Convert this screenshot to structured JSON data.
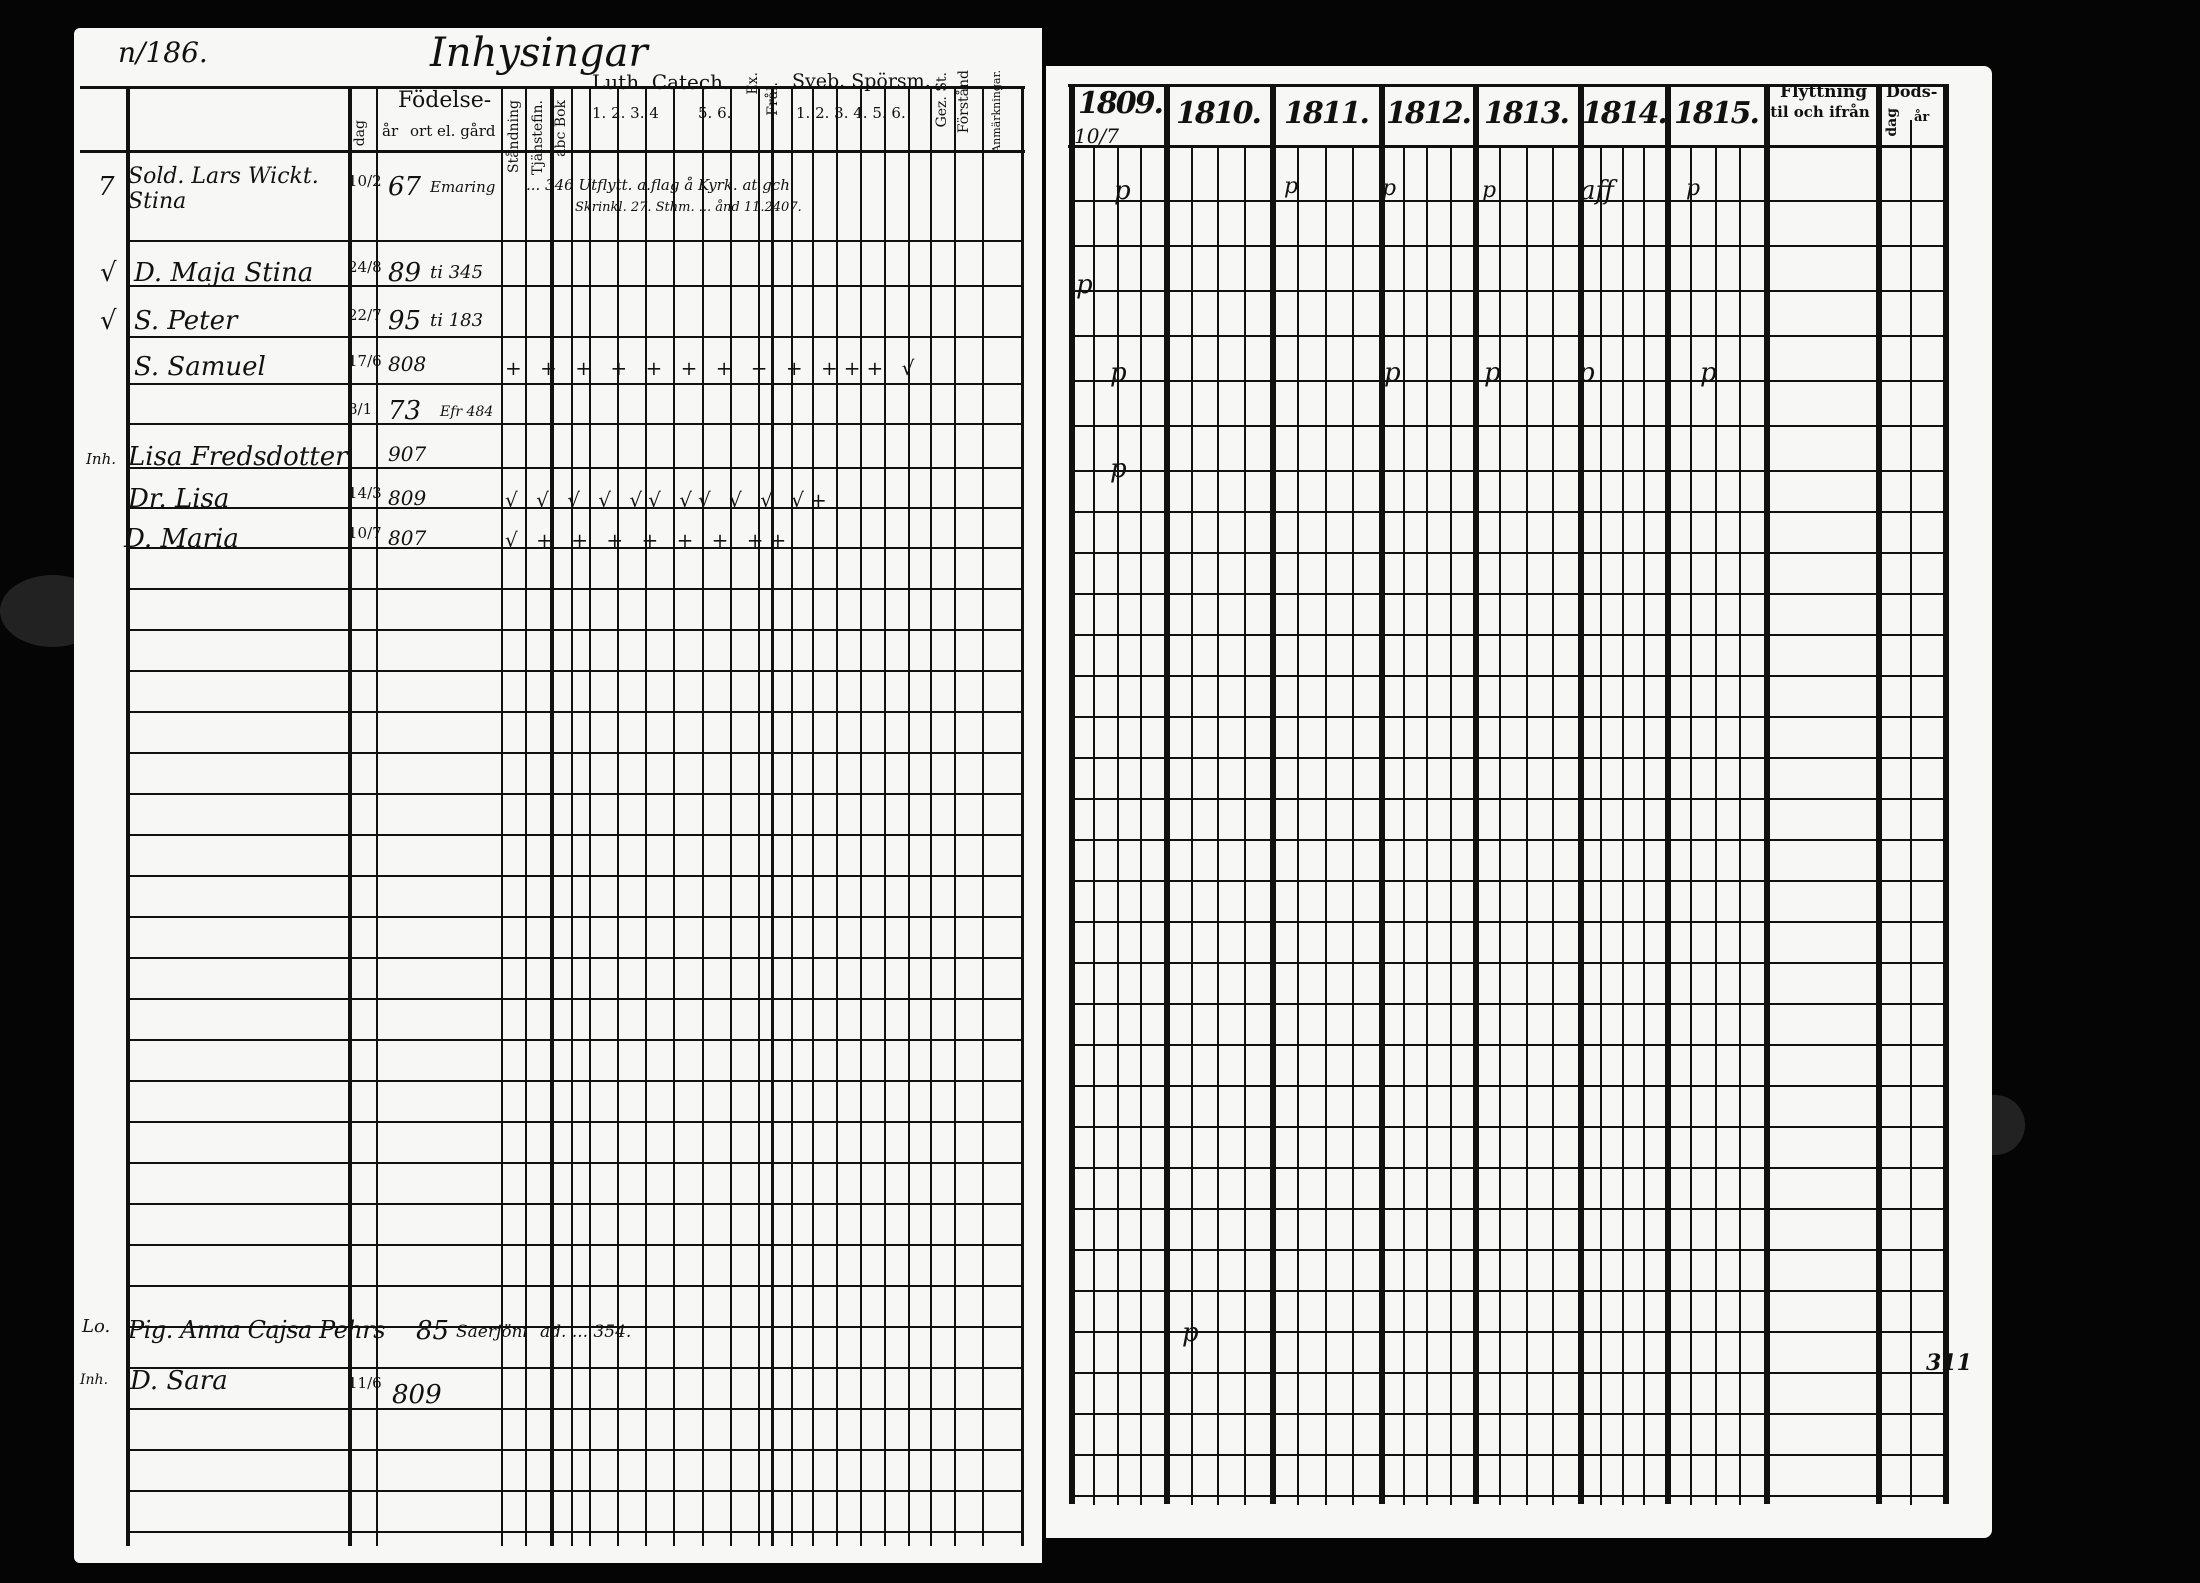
{
  "left_page": {
    "page_number": "n/186.",
    "title": "Inhysingar",
    "headers": {
      "fodelse": "Födelse-",
      "dag": "dag",
      "ar": "år",
      "ort": "ort el. gård",
      "stadning": "Ståndning",
      "tjanst": "Tjänstefin.",
      "abc": "abc Bok",
      "luth": "Luth. Catech.",
      "luth_cols": "1. 2. 3. 4",
      "luth_cols2": "5. 6.",
      "col_a": "Ex.",
      "col_b": "Frål.",
      "sveb": "Sveb. Spörsm.",
      "sveb_cols": "1. 2. 3. 4. 5. 6.",
      "gez": "Gez. St.",
      "forstand": "Förstånd",
      "anmarkningar": "Anmärkningar."
    },
    "rows": [
      {
        "margin": "7",
        "name": "Sold. Lars Wickt. Stina",
        "dag": "10/2",
        "ar": "67",
        "ort": "Emaring",
        "note1": "... 346 Utflytt. a.flag å Kyrk. at gch",
        "note2": "Skrinkl. 27. Sthm. ... ånd 11.2407."
      },
      {
        "margin": "√",
        "name": "D. Maja Stina",
        "dag": "24/8",
        "ar": "89",
        "ort": "ti 345"
      },
      {
        "margin": "√",
        "name": "S. Peter",
        "dag": "22/7",
        "ar": "95",
        "ort": "ti 183"
      },
      {
        "margin": "",
        "name": "S. Samuel",
        "dag": "17/6",
        "ar": "808",
        "marks": "+ + + + + + + + + +++ √"
      },
      {
        "margin": "",
        "name": "",
        "dag": "8/1",
        "ar": "73",
        "ort": "Efr 484"
      },
      {
        "margin": "Inh.",
        "name": "Lisa Fredsdotter",
        "dag": "",
        "ar": "907"
      },
      {
        "margin": "",
        "name": "Dr. Lisa",
        "dag": "14/3",
        "ar": "809",
        "marks": "√ √ √ √ √√ √√ √ √ √+"
      },
      {
        "margin": "",
        "name": "D. Maria",
        "dag": "10/7",
        "ar": "807",
        "marks": "√ + + + + + + ++"
      }
    ],
    "bottom_rows": [
      {
        "margin": "Lo.",
        "name": "Pig. Anna Cajsa Pehrs",
        "ar": "85",
        "ort": "Saerjöni",
        "note": "ad. ... 354."
      },
      {
        "margin": "Inh.",
        "name": "D. Sara",
        "dag": "11/6",
        "ar": "809"
      }
    ]
  },
  "right_page": {
    "years": [
      "1809.",
      "1810.",
      "1811.",
      "1812.",
      "1813.",
      "1814.",
      "1815."
    ],
    "year_sub": "10/7",
    "flyttning": "Flyttning",
    "flyttning_sub": "til och ifrån",
    "dods": "Döds-",
    "dods_sub1": "dag",
    "dods_sub2": "år",
    "marks": {
      "row1": [
        "p",
        "p",
        "p",
        "p",
        "aff",
        "p"
      ],
      "row2": "p",
      "row4": [
        "p",
        "p",
        "p",
        "p",
        "p"
      ],
      "row6": "p",
      "bottom": "p",
      "bottom_right": "311"
    }
  }
}
